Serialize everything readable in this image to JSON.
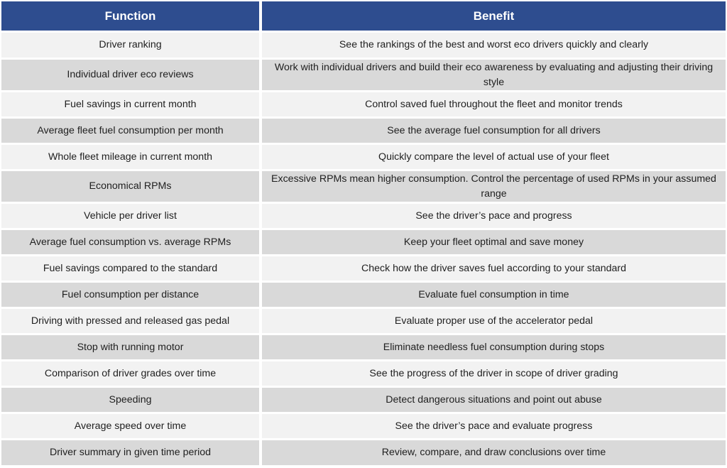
{
  "table": {
    "headers": [
      "Function",
      "Benefit"
    ],
    "rows": [
      {
        "function": "Driver ranking",
        "benefit": "See the rankings of the best and worst eco drivers quickly and clearly"
      },
      {
        "function": "Individual driver eco reviews",
        "benefit": "Work with individual drivers and build their eco awareness by evaluating and adjusting their driving style"
      },
      {
        "function": "Fuel savings in current month",
        "benefit": "Control saved fuel throughout the fleet and monitor trends"
      },
      {
        "function": "Average fleet fuel consumption per month",
        "benefit": "See the average fuel consumption for all drivers"
      },
      {
        "function": "Whole fleet mileage in current month",
        "benefit": "Quickly compare the level of actual use of your fleet"
      },
      {
        "function": "Economical RPMs",
        "benefit": "Excessive RPMs mean higher consumption. Control the percentage of used RPMs in your assumed range"
      },
      {
        "function": "Vehicle per driver list",
        "benefit": "See the driver’s pace and progress"
      },
      {
        "function": "Average fuel consumption vs. average RPMs",
        "benefit": "Keep your fleet optimal and save money"
      },
      {
        "function": "Fuel savings compared to the standard",
        "benefit": "Check how the driver saves fuel according to your standard"
      },
      {
        "function": "Fuel consumption per distance",
        "benefit": "Evaluate fuel consumption in time"
      },
      {
        "function": "Driving with pressed and released gas pedal",
        "benefit": "Evaluate proper use of the accelerator pedal"
      },
      {
        "function": "Stop with running motor",
        "benefit": "Eliminate needless fuel consumption during stops"
      },
      {
        "function": "Comparison of driver grades over time",
        "benefit": "See the progress of the driver in scope of driver grading"
      },
      {
        "function": "Speeding",
        "benefit": "Detect dangerous situations and point out abuse"
      },
      {
        "function": "Average speed over time",
        "benefit": "See the driver’s pace and evaluate progress"
      },
      {
        "function": "Driver summary in given time period",
        "benefit": "Review, compare, and draw conclusions over time"
      }
    ]
  },
  "colors": {
    "header_bg": "#2e4d8f",
    "header_text": "#ffffff",
    "row_light": "#f2f2f2",
    "row_dark": "#d9d9d9"
  }
}
